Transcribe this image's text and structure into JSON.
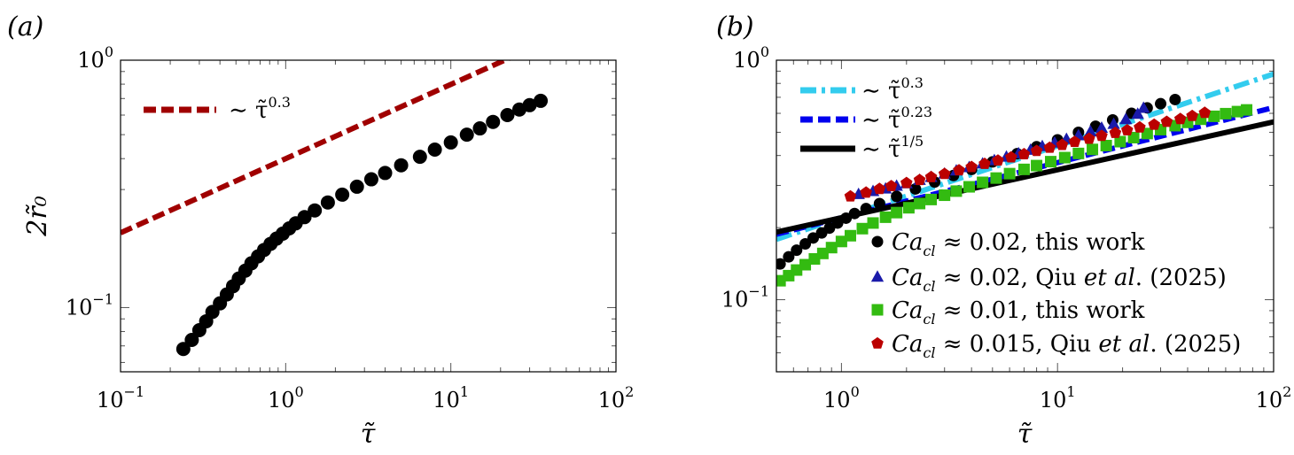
{
  "chart_data": [
    {
      "panel_label": "(a)",
      "type": "scatter",
      "x_scale": "log",
      "y_scale": "log",
      "xlabel": "τ̃",
      "ylabel": "2r̃₀",
      "xlim": [
        0.1,
        100
      ],
      "ylim": [
        0.055,
        1
      ],
      "x_ticks": [
        {
          "base": "10",
          "exp": "−1",
          "value": 0.1
        },
        {
          "base": "10",
          "exp": "0",
          "value": 1
        },
        {
          "base": "10",
          "exp": "1",
          "value": 10
        },
        {
          "base": "10",
          "exp": "2",
          "value": 100
        }
      ],
      "y_ticks": [
        {
          "base": "10",
          "exp": "−1",
          "value": 0.1
        },
        {
          "base": "10",
          "exp": "0",
          "value": 1
        }
      ],
      "grid": false,
      "legend_position": "top-left",
      "legend": [
        {
          "text": "∼ τ̃",
          "exp": "0.3",
          "color": "#a00000",
          "style": "dashed"
        }
      ],
      "lines": [
        {
          "name": "∼ τ̃^0.3",
          "color": "#a00000",
          "dash": "dashed",
          "amplitude": 0.4,
          "exponent": 0.3
        }
      ],
      "series": [
        {
          "color": "#000000",
          "marker": "circle",
          "x": [
            0.24,
            0.27,
            0.3,
            0.33,
            0.36,
            0.4,
            0.44,
            0.48,
            0.52,
            0.57,
            0.62,
            0.68,
            0.74,
            0.81,
            0.88,
            0.96,
            1.05,
            1.15,
            1.3,
            1.5,
            1.8,
            2.2,
            2.7,
            3.3,
            4.0,
            5.0,
            6.5,
            8.0,
            10.0,
            12.5,
            15.0,
            18.0,
            22.0,
            26.0,
            30.0,
            35.0
          ],
          "y": [
            0.068,
            0.074,
            0.081,
            0.088,
            0.096,
            0.104,
            0.113,
            0.122,
            0.131,
            0.141,
            0.151,
            0.161,
            0.171,
            0.181,
            0.19,
            0.199,
            0.209,
            0.219,
            0.232,
            0.247,
            0.266,
            0.286,
            0.308,
            0.33,
            0.35,
            0.376,
            0.407,
            0.435,
            0.465,
            0.5,
            0.53,
            0.563,
            0.6,
            0.632,
            0.658,
            0.685
          ]
        }
      ]
    },
    {
      "panel_label": "(b)",
      "type": "scatter",
      "x_scale": "log",
      "y_scale": "log",
      "xlabel": "τ̃",
      "ylabel": "",
      "xlim": [
        0.5,
        100
      ],
      "ylim": [
        0.05,
        1
      ],
      "x_ticks": [
        {
          "base": "10",
          "exp": "0",
          "value": 1
        },
        {
          "base": "10",
          "exp": "1",
          "value": 10
        },
        {
          "base": "10",
          "exp": "2",
          "value": 100
        }
      ],
      "y_ticks": [
        {
          "base": "10",
          "exp": "−1",
          "value": 0.1
        },
        {
          "base": "10",
          "exp": "0",
          "value": 1
        }
      ],
      "grid": false,
      "legend_position": "top-left",
      "legend": [
        {
          "text": "∼ τ̃",
          "exp": "0.3",
          "color": "#33ccee",
          "style": "dashdot"
        },
        {
          "text": "∼ τ̃",
          "exp": "0.23",
          "color": "#0000ee",
          "style": "dashed"
        },
        {
          "text": "∼ τ̃",
          "exp": "1/5",
          "color": "#000000",
          "style": "solid"
        }
      ],
      "markers_legend": [
        {
          "marker": "circle",
          "color": "#000000",
          "pre": "Ca",
          "sub": "cl",
          "mid": " ≈ 0.02, this work",
          "italic": "",
          "post": ""
        },
        {
          "marker": "triangle",
          "color": "#1a1aaa",
          "pre": "Ca",
          "sub": "cl",
          "mid": " ≈ 0.02, Qiu ",
          "italic": "et al",
          "post": ". (2025)"
        },
        {
          "marker": "square",
          "color": "#33bb11",
          "pre": "Ca",
          "sub": "cl",
          "mid": " ≈ 0.01, this work",
          "italic": "",
          "post": ""
        },
        {
          "marker": "pentagon",
          "color": "#bb0000",
          "pre": "Ca",
          "sub": "cl",
          "mid": " ≈ 0.015, Qiu ",
          "italic": "et al",
          "post": ". (2025)"
        }
      ],
      "lines": [
        {
          "name": "∼ τ̃^0.3",
          "color": "#33ccee",
          "dash": "dashdot",
          "amplitude": 0.22,
          "exponent": 0.3
        },
        {
          "name": "∼ τ̃^0.23",
          "color": "#0000ee",
          "dash": "dashed",
          "amplitude": 0.22,
          "exponent": 0.23
        },
        {
          "name": "∼ τ̃^1/5",
          "color": "#000000",
          "dash": "solid",
          "amplitude": 0.22,
          "exponent": 0.2
        }
      ],
      "series": [
        {
          "color": "#000000",
          "marker": "circle",
          "x": [
            0.52,
            0.57,
            0.62,
            0.68,
            0.74,
            0.81,
            0.88,
            0.96,
            1.05,
            1.15,
            1.3,
            1.5,
            1.8,
            2.2,
            2.7,
            3.3,
            4.0,
            5.0,
            6.5,
            8.0,
            10.0,
            12.5,
            15.0,
            18.0,
            22.0,
            26.0,
            30.0,
            35.0
          ],
          "y": [
            0.141,
            0.151,
            0.161,
            0.171,
            0.181,
            0.19,
            0.199,
            0.209,
            0.219,
            0.229,
            0.24,
            0.252,
            0.27,
            0.29,
            0.31,
            0.33,
            0.35,
            0.376,
            0.407,
            0.435,
            0.465,
            0.5,
            0.53,
            0.563,
            0.6,
            0.632,
            0.658,
            0.685
          ]
        },
        {
          "color": "#1a1aaa",
          "marker": "triangle",
          "x": [
            1.2,
            1.4,
            1.6,
            1.8,
            2.0,
            2.3,
            2.6,
            3.0,
            3.4,
            3.9,
            4.5,
            5.1,
            5.8,
            6.6,
            7.5,
            8.5,
            9.7,
            11.0,
            12.5,
            14.2,
            16.0,
            18.2,
            20.7,
            23.5,
            25.0
          ],
          "y": [
            0.275,
            0.283,
            0.29,
            0.298,
            0.305,
            0.315,
            0.324,
            0.335,
            0.345,
            0.356,
            0.369,
            0.381,
            0.394,
            0.407,
            0.421,
            0.436,
            0.451,
            0.467,
            0.484,
            0.502,
            0.52,
            0.54,
            0.565,
            0.595,
            0.63
          ]
        },
        {
          "color": "#33bb11",
          "marker": "square",
          "x": [
            0.52,
            0.57,
            0.62,
            0.68,
            0.75,
            0.82,
            0.9,
            1.0,
            1.1,
            1.25,
            1.4,
            1.6,
            1.8,
            2.05,
            2.3,
            2.6,
            3.0,
            3.4,
            3.9,
            4.5,
            5.2,
            6.0,
            7.0,
            8.0,
            9.3,
            10.8,
            12.5,
            14.5,
            16.8,
            19.5,
            22.5,
            26.0,
            30.0,
            35.0,
            40.0,
            46.0,
            53.0,
            60.0,
            68.0,
            75.0
          ],
          "y": [
            0.12,
            0.126,
            0.133,
            0.14,
            0.148,
            0.156,
            0.165,
            0.175,
            0.185,
            0.198,
            0.209,
            0.221,
            0.231,
            0.242,
            0.252,
            0.262,
            0.273,
            0.284,
            0.296,
            0.309,
            0.322,
            0.336,
            0.35,
            0.363,
            0.377,
            0.392,
            0.408,
            0.424,
            0.44,
            0.457,
            0.475,
            0.494,
            0.513,
            0.533,
            0.55,
            0.567,
            0.583,
            0.598,
            0.61,
            0.62
          ]
        },
        {
          "color": "#bb0000",
          "marker": "pentagon",
          "x": [
            1.1,
            1.3,
            1.5,
            1.7,
            2.0,
            2.3,
            2.6,
            3.0,
            3.5,
            4.0,
            4.6,
            5.3,
            6.1,
            7.0,
            8.0,
            9.2,
            10.5,
            12.0,
            14.0,
            16.0,
            18.5,
            21.0,
            24.0,
            28.0,
            32.0,
            37.0,
            42.0,
            48.0
          ],
          "y": [
            0.27,
            0.28,
            0.29,
            0.298,
            0.307,
            0.316,
            0.325,
            0.335,
            0.347,
            0.358,
            0.369,
            0.381,
            0.393,
            0.405,
            0.418,
            0.431,
            0.443,
            0.456,
            0.47,
            0.483,
            0.497,
            0.51,
            0.524,
            0.538,
            0.553,
            0.568,
            0.585,
            0.603
          ]
        }
      ]
    }
  ]
}
